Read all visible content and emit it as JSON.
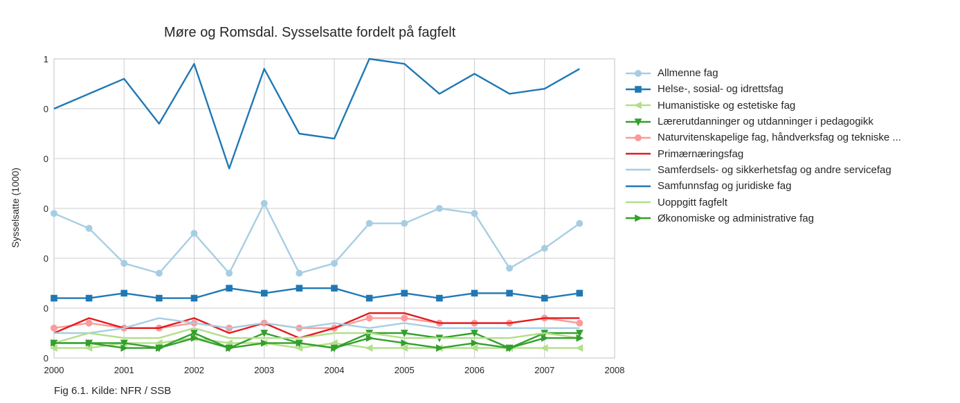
{
  "caption": "Fig 6.1. Kilde: NFR / SSB",
  "chart_data": {
    "type": "line",
    "title": "Møre og Romsdal. Sysselsatte fordelt på fagfelt",
    "xlabel": "",
    "ylabel": "Sysselsatte (1000)",
    "xlim": [
      2000,
      2008
    ],
    "ylim": [
      0,
      1.2
    ],
    "grid": true,
    "legend_position": "outside-right",
    "x_ticks": [
      "2000",
      "2001",
      "2002",
      "2003",
      "2004",
      "2005",
      "2006",
      "2007",
      "2008"
    ],
    "y_ticks": [
      {
        "value": 0,
        "label": "0"
      },
      {
        "value": 0.2,
        "label": "0"
      },
      {
        "value": 0.4,
        "label": "0"
      },
      {
        "value": 0.6,
        "label": "0"
      },
      {
        "value": 0.8,
        "label": "0"
      },
      {
        "value": 1.0,
        "label": "0"
      },
      {
        "value": 1.2,
        "label": "1"
      }
    ],
    "x": [
      2000,
      2000.5,
      2001,
      2001.5,
      2002,
      2002.5,
      2003,
      2003.5,
      2004,
      2004.5,
      2005,
      2005.5,
      2006,
      2006.5,
      2007,
      2007.5
    ],
    "series": [
      {
        "name": "Allmenne fag",
        "color": "#a6cee3",
        "marker": "circle",
        "values": [
          0.58,
          0.52,
          0.38,
          0.34,
          0.5,
          0.34,
          0.62,
          0.34,
          0.38,
          0.54,
          0.54,
          0.6,
          0.58,
          0.36,
          0.44,
          0.54
        ]
      },
      {
        "name": "Helse-, sosial- og idrettsfag",
        "color": "#1f78b4",
        "marker": "square",
        "values": [
          0.24,
          0.24,
          0.26,
          0.24,
          0.24,
          0.28,
          0.26,
          0.28,
          0.28,
          0.24,
          0.26,
          0.24,
          0.26,
          0.26,
          0.24,
          0.26
        ]
      },
      {
        "name": "Humanistiske og estetiske fag",
        "color": "#b2df8a",
        "marker": "triangle-left",
        "values": [
          0.04,
          0.04,
          0.06,
          0.06,
          0.08,
          0.06,
          0.06,
          0.04,
          0.06,
          0.04,
          0.04,
          0.04,
          0.04,
          0.04,
          0.04,
          0.04
        ]
      },
      {
        "name": "Lærerutdanninger og utdanninger i pedagogikk",
        "color": "#33a02c",
        "marker": "triangle-down",
        "values": [
          0.06,
          0.06,
          0.06,
          0.04,
          0.1,
          0.04,
          0.1,
          0.06,
          0.04,
          0.1,
          0.1,
          0.08,
          0.1,
          0.04,
          0.1,
          0.1
        ]
      },
      {
        "name": "Naturvitenskapelige fag, håndverksfag og tekniske ...",
        "color": "#fb9a99",
        "marker": "circle",
        "values": [
          0.12,
          0.14,
          0.12,
          0.12,
          0.14,
          0.12,
          0.14,
          0.12,
          0.12,
          0.16,
          0.16,
          0.14,
          0.14,
          0.14,
          0.16,
          0.14
        ]
      },
      {
        "name": "Primærnæringsfag",
        "color": "#e31a1c",
        "marker": "none",
        "values": [
          0.1,
          0.16,
          0.12,
          0.12,
          0.16,
          0.1,
          0.14,
          0.08,
          0.12,
          0.18,
          0.18,
          0.14,
          0.14,
          0.14,
          0.16,
          0.16
        ]
      },
      {
        "name": "Samferdsels- og sikkerhetsfag og andre servicefag",
        "color": "#a6cee3",
        "marker": "none",
        "values": [
          0.1,
          0.1,
          0.12,
          0.16,
          0.14,
          0.12,
          0.14,
          0.12,
          0.14,
          0.12,
          0.14,
          0.12,
          0.12,
          0.12,
          0.12,
          0.12
        ]
      },
      {
        "name": "Samfunnsfag og juridiske fag",
        "color": "#1f78b4",
        "marker": "none",
        "values": [
          1.0,
          1.06,
          1.12,
          0.94,
          1.18,
          0.76,
          1.16,
          0.9,
          0.88,
          1.2,
          1.18,
          1.06,
          1.14,
          1.06,
          1.08,
          1.16
        ]
      },
      {
        "name": "Uoppgitt fagfelt",
        "color": "#b2df8a",
        "marker": "none",
        "values": [
          0.06,
          0.1,
          0.08,
          0.08,
          0.12,
          0.08,
          0.08,
          0.08,
          0.1,
          0.1,
          0.08,
          0.08,
          0.08,
          0.08,
          0.1,
          0.08
        ]
      },
      {
        "name": "Økonomiske og administrative fag",
        "color": "#33a02c",
        "marker": "triangle-right",
        "values": [
          0.06,
          0.06,
          0.04,
          0.04,
          0.08,
          0.04,
          0.06,
          0.06,
          0.04,
          0.08,
          0.06,
          0.04,
          0.06,
          0.04,
          0.08,
          0.08
        ]
      }
    ]
  }
}
